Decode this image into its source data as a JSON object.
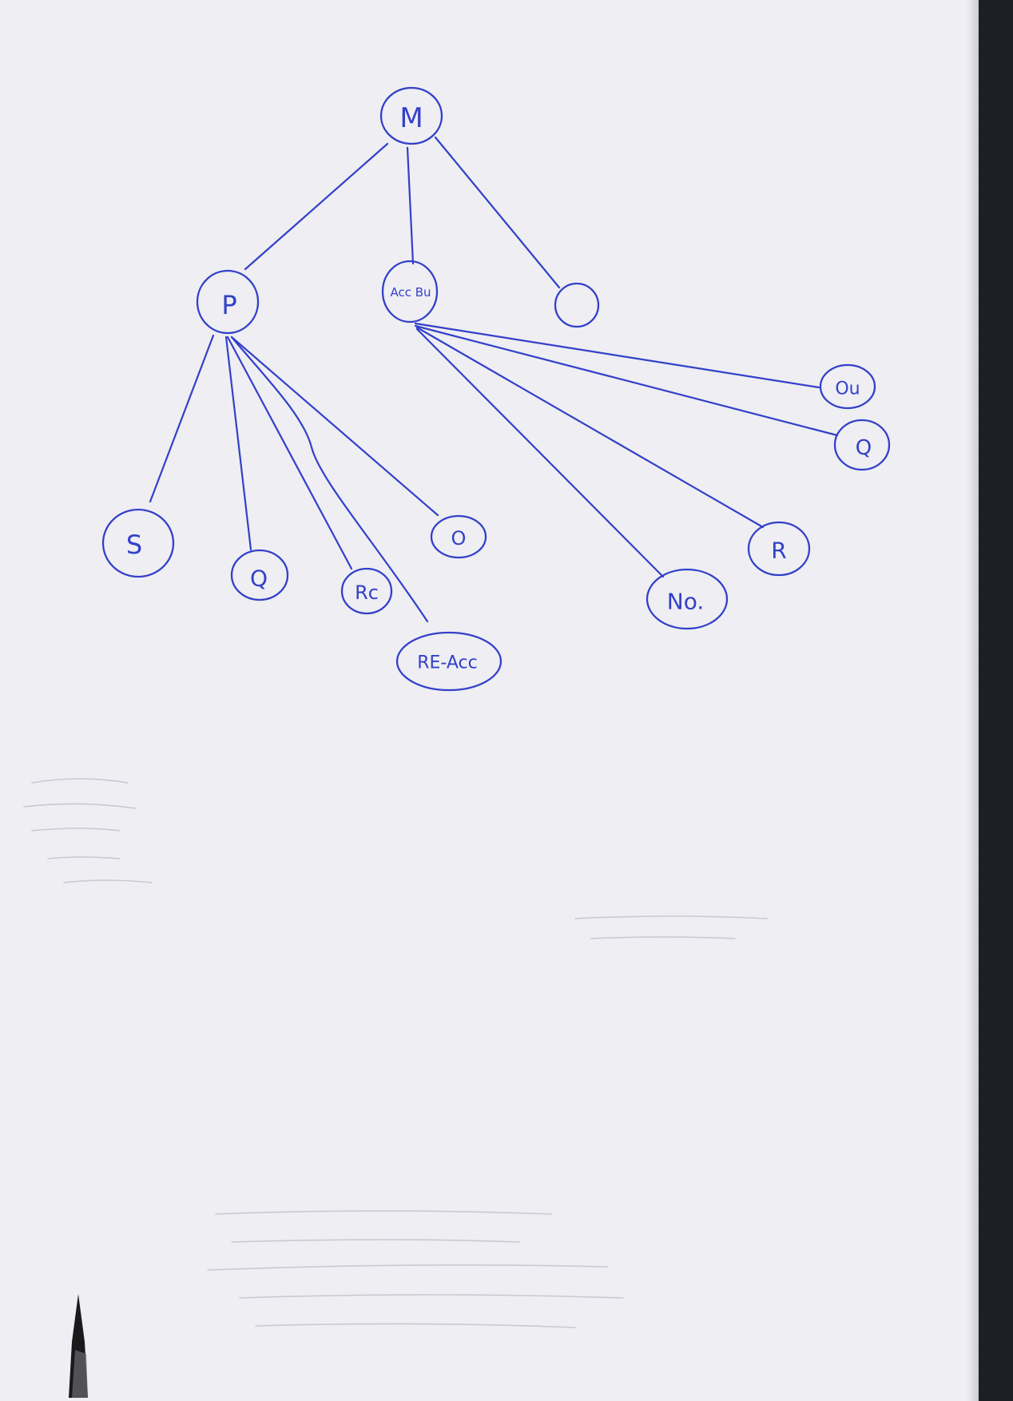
{
  "diagram": {
    "nodes": [
      {
        "id": "n-root",
        "label": "M"
      },
      {
        "id": "n-p",
        "label": "P"
      },
      {
        "id": "n-accbu",
        "label": "Acc Bu"
      },
      {
        "id": "n-empty",
        "label": ""
      },
      {
        "id": "n-s",
        "label": "S"
      },
      {
        "id": "n-q1",
        "label": "Q"
      },
      {
        "id": "n-rc",
        "label": "Rc"
      },
      {
        "id": "n-o",
        "label": "O"
      },
      {
        "id": "n-reacc",
        "label": "RE-Acc"
      },
      {
        "id": "n-ou",
        "label": "Ou"
      },
      {
        "id": "n-q2",
        "label": "Q"
      },
      {
        "id": "n-r",
        "label": "R"
      },
      {
        "id": "n-no",
        "label": "No."
      }
    ],
    "edges": [
      {
        "from": "n-root",
        "to": "n-p"
      },
      {
        "from": "n-root",
        "to": "n-accbu"
      },
      {
        "from": "n-root",
        "to": "n-empty"
      },
      {
        "from": "n-p",
        "to": "n-s"
      },
      {
        "from": "n-p",
        "to": "n-q1"
      },
      {
        "from": "n-p",
        "to": "n-rc"
      },
      {
        "from": "n-p",
        "to": "n-reacc"
      },
      {
        "from": "n-p",
        "to": "n-o"
      },
      {
        "from": "n-accbu",
        "to": "n-ou"
      },
      {
        "from": "n-accbu",
        "to": "n-q2"
      },
      {
        "from": "n-accbu",
        "to": "n-r"
      },
      {
        "from": "n-accbu",
        "to": "n-no"
      }
    ]
  },
  "colors": {
    "ink": "#3340c8",
    "paper": "#eeeef3",
    "background": "#1d1f24"
  }
}
